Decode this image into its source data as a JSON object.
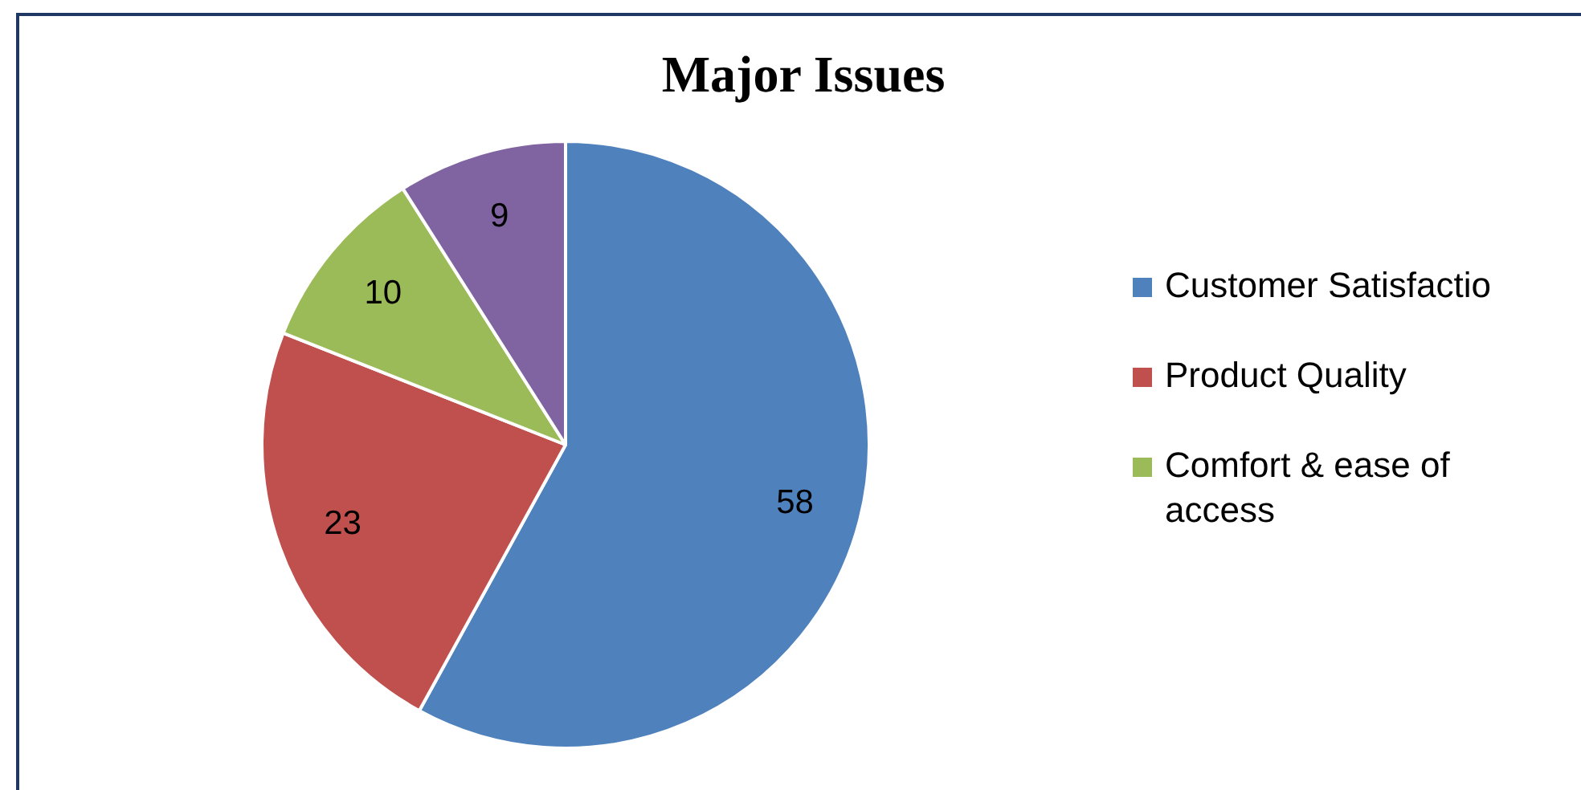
{
  "chart_data": {
    "type": "pie",
    "title": "Major Issues",
    "categories": [
      "Customer Satisfactio",
      "Product Quality",
      "Comfort & ease of access",
      null
    ],
    "values": [
      58,
      23,
      10,
      9
    ],
    "colors": [
      "#4f81bd",
      "#c0504d",
      "#9bbb59",
      "#8064a2"
    ],
    "data_labels": true,
    "legend": "right"
  }
}
